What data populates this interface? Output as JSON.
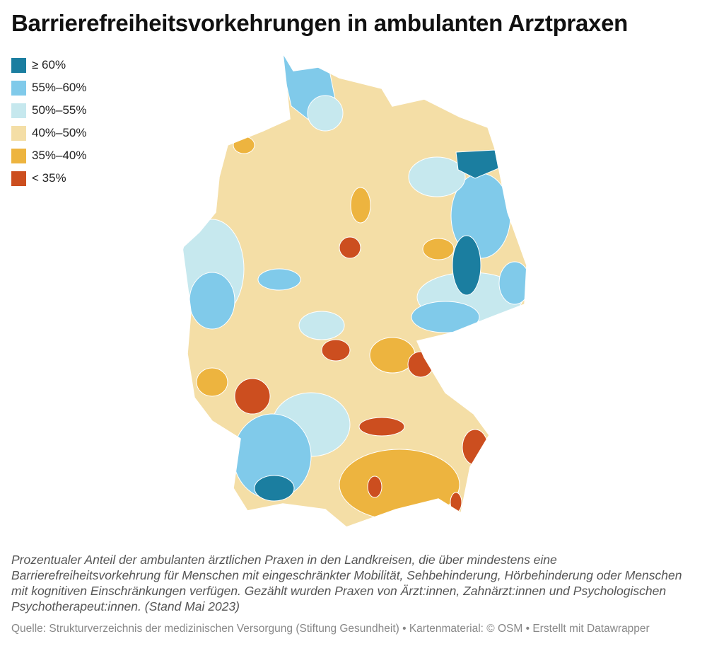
{
  "header": {
    "title": "Barrierefreiheitsvorkehrungen in ambulanten Arztpraxen"
  },
  "legend": [
    {
      "label": "≥ 60%",
      "color": "#1b7ea0"
    },
    {
      "label": "55%–60%",
      "color": "#80caea"
    },
    {
      "label": "50%–55%",
      "color": "#c6e8ee"
    },
    {
      "label": "40%–50%",
      "color": "#f4dea6"
    },
    {
      "label": "35%–40%",
      "color": "#edb43f"
    },
    {
      "label": "< 35%",
      "color": "#cc4e1f"
    }
  ],
  "footer": {
    "description": "Prozentualer Anteil der ambulanten ärztlichen Praxen in den Landkreisen, die über mindestens eine Barrierefreiheitsvorkehrung für Menschen mit eingeschränkter Mobilität, Sehbehinderung, Hörbehinderung oder Menschen mit kognitiven Einschränkungen verfügen. Gezählt wurden Praxen von Ärzt:innen, Zahnärzt:innen und Psychologischen Psychotherapeut:innen. (Stand Mai 2023)",
    "source": "Quelle: Strukturverzeichnis der medizinischen Versorgung (Stiftung Gesundheit) • Kartenmaterial: © OSM • Erstellt mit Datawrapper"
  }
}
